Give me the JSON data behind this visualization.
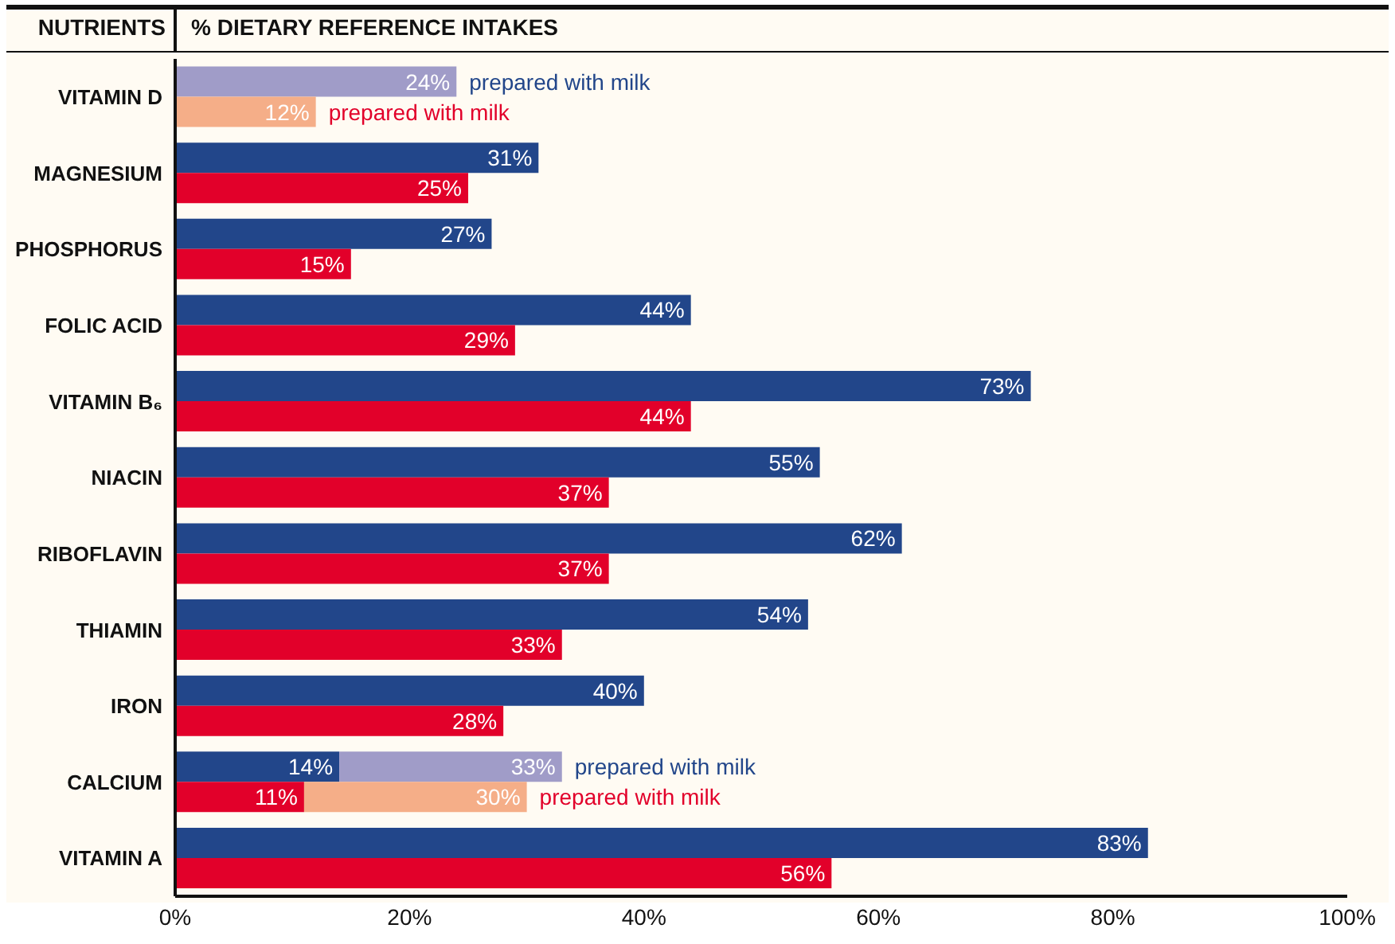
{
  "chart_data": {
    "type": "bar",
    "orientation": "horizontal",
    "ylabel": "NUTRIENTS",
    "xlabel": "% DIETARY REFERENCE INTAKES",
    "categories": [
      "VITAMIN D",
      "MAGNESIUM",
      "PHOSPHORUS",
      "FOLIC ACID",
      "VITAMIN B₆",
      "NIACIN",
      "RIBOFLAVIN",
      "THIAMIN",
      "IRON",
      "CALCIUM",
      "VITAMIN A"
    ],
    "series": [
      {
        "color": "#22468a",
        "values": [
          null,
          31,
          27,
          44,
          73,
          55,
          62,
          54,
          40,
          14,
          83
        ],
        "value_labels": [
          null,
          "31%",
          "27%",
          "44%",
          "73%",
          "55%",
          "62%",
          "54%",
          "40%",
          "14%",
          "83%"
        ]
      },
      {
        "name": "prepared with milk",
        "color": "#a09cc8",
        "values": [
          24,
          null,
          null,
          null,
          null,
          null,
          null,
          null,
          null,
          19,
          null
        ],
        "base": [
          0,
          null,
          null,
          null,
          null,
          null,
          null,
          null,
          null,
          14,
          null
        ],
        "value_labels": [
          "24%",
          null,
          null,
          null,
          null,
          null,
          null,
          null,
          null,
          "33%",
          null
        ]
      },
      {
        "color": "#e2002a",
        "values": [
          null,
          25,
          15,
          29,
          44,
          37,
          37,
          33,
          28,
          11,
          56
        ],
        "value_labels": [
          null,
          "25%",
          "15%",
          "29%",
          "44%",
          "37%",
          "37%",
          "33%",
          "28%",
          "11%",
          "56%"
        ]
      },
      {
        "name": "prepared with milk",
        "color": "#f5ae88",
        "values": [
          12,
          null,
          null,
          null,
          null,
          null,
          null,
          null,
          null,
          19,
          null
        ],
        "base": [
          0,
          null,
          null,
          null,
          null,
          null,
          null,
          null,
          null,
          11,
          null
        ],
        "value_labels": [
          "12%",
          null,
          null,
          null,
          null,
          null,
          null,
          null,
          null,
          "30%",
          null
        ]
      }
    ],
    "xlim": [
      0,
      100
    ],
    "xticks": [
      {
        "value": 0,
        "label": "0%"
      },
      {
        "value": 20,
        "label": "20%"
      },
      {
        "value": 40,
        "label": "40%"
      },
      {
        "value": 60,
        "label": "60%"
      },
      {
        "value": 80,
        "label": "80%"
      },
      {
        "value": 100,
        "label": "100%"
      }
    ],
    "grid": false,
    "legend": false
  }
}
